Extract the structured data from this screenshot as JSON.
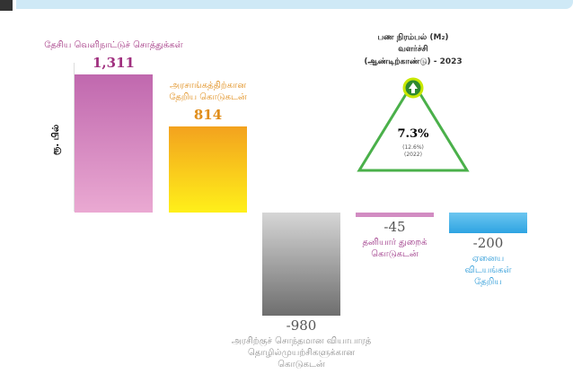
{
  "chart_data": {
    "type": "waterfall-bar",
    "y_label": "ரூ. பில்",
    "categories": [
      "தேசிய வெளிநாட்டுச் சொத்துக்கள்",
      "அரசாங்கத்திற்கான\nதேறிய கொடுகடன்",
      "அரசிற்குச் சொந்தமான வியாபாரத்\nதொழில்முயற்சிகளுக்கான\nகொடுகடன்",
      "தனியார் துறைக்\nகொடுகடன்",
      "ஏனைய\nவிடயங்கள்\nதேறிய"
    ],
    "values": [
      1311,
      814,
      -980,
      -45,
      -200
    ],
    "value_labels": [
      "1,311",
      "814",
      "-980",
      "-45",
      "-200"
    ],
    "colors": [
      [
        "#c068ae",
        "#eaa9d2"
      ],
      [
        "#f3a21e",
        "#fff01a"
      ],
      [
        "#6e6e6e",
        "#d6d6d6"
      ],
      [
        "#d28cc2",
        "#d28cc2"
      ],
      [
        "#2ea4e2",
        "#6cc6f0"
      ]
    ],
    "label_colors": [
      "#a0307f",
      "#e08d1a",
      "#909090",
      "#9a3083",
      "#2b9ad8"
    ],
    "annotation": {
      "title": [
        "பண நிரம்பல் (M₂)",
        "வளர்ச்சி",
        "(ஆண்டிற்காண்டு) - 2023"
      ],
      "value": "7.3%",
      "previous": "(12.6%)",
      "previous_year": "(2022)"
    }
  }
}
